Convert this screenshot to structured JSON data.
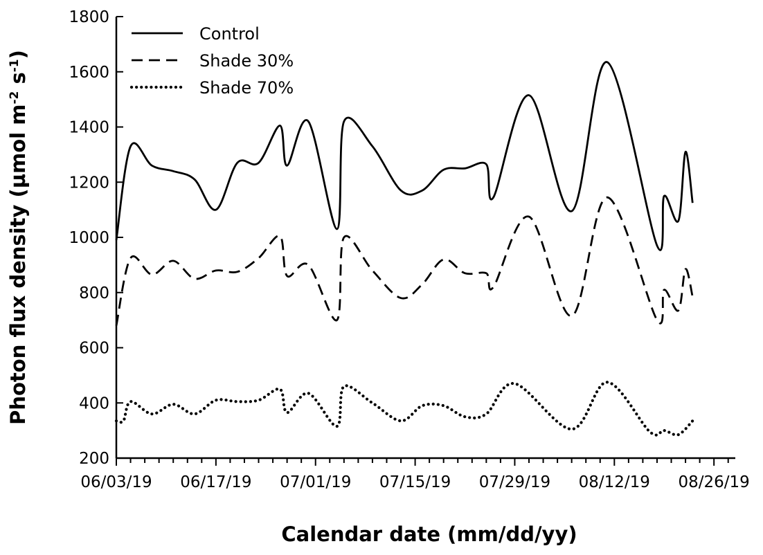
{
  "chart_data": {
    "type": "line",
    "xlabel": "Calendar date (mm/dd/yy)",
    "ylabel": {
      "main": "Photon flux density (µmol m",
      "sup1": "-2",
      "mid": " s",
      "sup2": "-1",
      "end": ")"
    },
    "x_tick_labels": [
      "06/03/19",
      "06/17/19",
      "07/01/19",
      "07/15/19",
      "07/29/19",
      "08/12/19",
      "08/26/19"
    ],
    "xlim": [
      "2019-06-03",
      "2019-08-29"
    ],
    "ylim": [
      200,
      1800
    ],
    "y_ticks": [
      200,
      400,
      600,
      800,
      1000,
      1200,
      1400,
      1600,
      1800
    ],
    "grid": false,
    "legend_position": "top-left",
    "series": [
      {
        "name": "Control",
        "style": "solid",
        "points": [
          [
            "2019-06-03",
            990
          ],
          [
            "2019-06-05",
            1330
          ],
          [
            "2019-06-08",
            1260
          ],
          [
            "2019-06-11",
            1240
          ],
          [
            "2019-06-14",
            1210
          ],
          [
            "2019-06-17",
            1100
          ],
          [
            "2019-06-20",
            1270
          ],
          [
            "2019-06-23",
            1270
          ],
          [
            "2019-06-26",
            1405
          ],
          [
            "2019-06-27",
            1260
          ],
          [
            "2019-06-30",
            1420
          ],
          [
            "2019-07-04",
            1030
          ],
          [
            "2019-07-05",
            1420
          ],
          [
            "2019-07-09",
            1330
          ],
          [
            "2019-07-13",
            1170
          ],
          [
            "2019-07-16",
            1170
          ],
          [
            "2019-07-19",
            1245
          ],
          [
            "2019-07-22",
            1250
          ],
          [
            "2019-07-25",
            1265
          ],
          [
            "2019-07-26",
            1145
          ],
          [
            "2019-07-31",
            1515
          ],
          [
            "2019-08-06",
            1095
          ],
          [
            "2019-08-11",
            1635
          ],
          [
            "2019-08-18",
            970
          ],
          [
            "2019-08-19",
            1150
          ],
          [
            "2019-08-21",
            1060
          ],
          [
            "2019-08-22",
            1310
          ],
          [
            "2019-08-23",
            1125
          ]
        ]
      },
      {
        "name": "Shade 30%",
        "style": "dashed",
        "points": [
          [
            "2019-06-03",
            680
          ],
          [
            "2019-06-05",
            925
          ],
          [
            "2019-06-08",
            865
          ],
          [
            "2019-06-11",
            915
          ],
          [
            "2019-06-14",
            850
          ],
          [
            "2019-06-17",
            880
          ],
          [
            "2019-06-20",
            875
          ],
          [
            "2019-06-23",
            925
          ],
          [
            "2019-06-26",
            1005
          ],
          [
            "2019-06-27",
            860
          ],
          [
            "2019-06-30",
            900
          ],
          [
            "2019-07-04",
            700
          ],
          [
            "2019-07-05",
            1000
          ],
          [
            "2019-07-09",
            880
          ],
          [
            "2019-07-13",
            780
          ],
          [
            "2019-07-16",
            830
          ],
          [
            "2019-07-19",
            920
          ],
          [
            "2019-07-22",
            870
          ],
          [
            "2019-07-25",
            870
          ],
          [
            "2019-07-26",
            820
          ],
          [
            "2019-07-31",
            1075
          ],
          [
            "2019-08-06",
            715
          ],
          [
            "2019-08-11",
            1145
          ],
          [
            "2019-08-18",
            700
          ],
          [
            "2019-08-19",
            810
          ],
          [
            "2019-08-21",
            735
          ],
          [
            "2019-08-22",
            885
          ],
          [
            "2019-08-23",
            785
          ]
        ]
      },
      {
        "name": "Shade 70%",
        "style": "dotted",
        "points": [
          [
            "2019-06-03",
            335
          ],
          [
            "2019-06-04",
            335
          ],
          [
            "2019-06-05",
            405
          ],
          [
            "2019-06-08",
            360
          ],
          [
            "2019-06-11",
            395
          ],
          [
            "2019-06-14",
            360
          ],
          [
            "2019-06-17",
            410
          ],
          [
            "2019-06-20",
            405
          ],
          [
            "2019-06-23",
            410
          ],
          [
            "2019-06-26",
            450
          ],
          [
            "2019-06-27",
            365
          ],
          [
            "2019-06-30",
            435
          ],
          [
            "2019-07-04",
            315
          ],
          [
            "2019-07-05",
            460
          ],
          [
            "2019-07-09",
            400
          ],
          [
            "2019-07-13",
            335
          ],
          [
            "2019-07-16",
            390
          ],
          [
            "2019-07-19",
            390
          ],
          [
            "2019-07-22",
            350
          ],
          [
            "2019-07-25",
            360
          ],
          [
            "2019-07-29",
            470
          ],
          [
            "2019-08-06",
            305
          ],
          [
            "2019-08-11",
            475
          ],
          [
            "2019-08-17",
            295
          ],
          [
            "2019-08-19",
            300
          ],
          [
            "2019-08-21",
            285
          ],
          [
            "2019-08-23",
            335
          ]
        ]
      }
    ]
  }
}
